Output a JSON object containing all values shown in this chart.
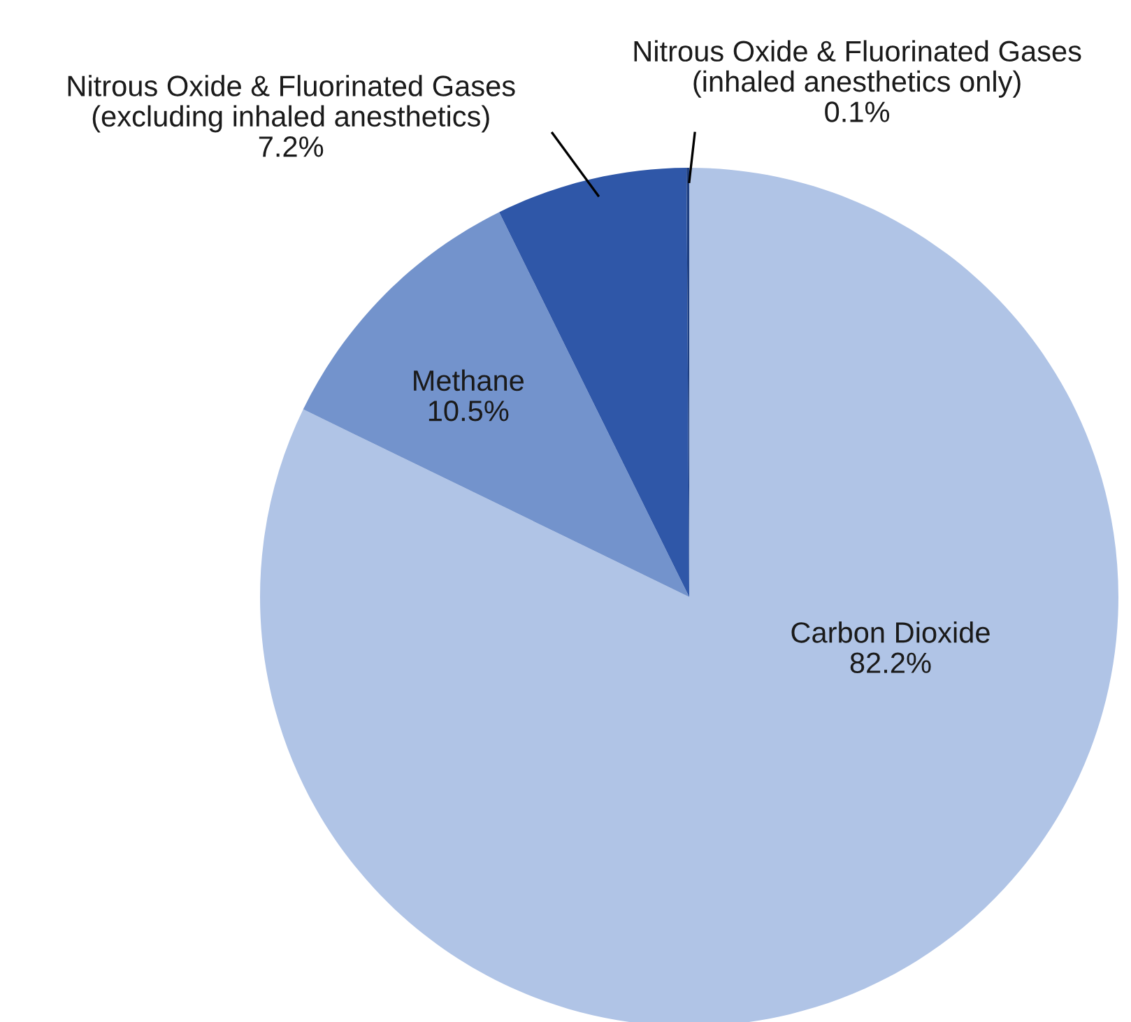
{
  "chart_data": {
    "type": "pie",
    "categories": [
      "Carbon Dioxide",
      "Methane",
      "Nitrous Oxide & Fluorinated Gases\n(excluding inhaled anesthetics)",
      "Nitrous Oxide & Fluorinated Gases\n(inhaled anesthetics only)"
    ],
    "values": [
      82.2,
      10.5,
      7.2,
      0.1
    ],
    "colors": [
      "#b0c4e6",
      "#7393cc",
      "#2f57a8",
      "#1f3f80"
    ],
    "value_labels": [
      "82.2%",
      "10.5%",
      "7.2%",
      "0.1%"
    ]
  }
}
